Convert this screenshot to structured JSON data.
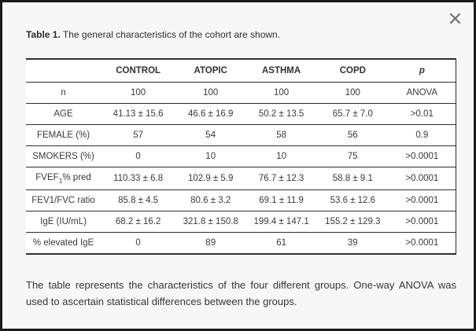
{
  "dialog": {
    "close_icon": "x"
  },
  "title": {
    "bold": "Table 1.",
    "rest": " The general characteristics of the cohort are shown."
  },
  "table": {
    "columns": [
      "",
      "CONTROL",
      "ATOPIC",
      "ASTHMA",
      "COPD",
      "p"
    ],
    "rows": [
      {
        "label": [
          {
            "t": "n"
          }
        ],
        "values": [
          "100",
          "100",
          "100",
          "100",
          "ANOVA"
        ]
      },
      {
        "label": [
          {
            "t": "AGE"
          }
        ],
        "values": [
          "41.13 ± 15.6",
          "46.6 ± 16.9",
          "50.2 ± 13.5",
          "65.7 ± 7.0",
          ">0.01"
        ]
      },
      {
        "label": [
          {
            "t": "FEMALE (%)"
          }
        ],
        "values": [
          "57",
          "54",
          "58",
          "56",
          "0.9"
        ]
      },
      {
        "label": [
          {
            "t": "SMOKERS (%)"
          }
        ],
        "values": [
          "0",
          "10",
          "10",
          "75",
          ">0.0001"
        ]
      },
      {
        "label": [
          {
            "t": "FVEF"
          },
          {
            "t": "1",
            "sub": true
          },
          {
            "t": "% pred"
          }
        ],
        "values": [
          "110.33 ± 6.8",
          "102.9 ± 5.9",
          "76.7 ± 12.3",
          "58.8 ± 9.1",
          ">0.0001"
        ]
      },
      {
        "label": [
          {
            "t": "FEV1/FVC ratio"
          }
        ],
        "values": [
          "85.8 ± 4.5",
          "80.6 ± 3.2",
          "69.1 ± 11.9",
          "53.6 ± 12.6",
          ">0.0001"
        ]
      },
      {
        "label": [
          {
            "t": "IgE (IU/mL)"
          }
        ],
        "values": [
          "68.2 ± 16.2",
          "321.8 ± 150.8",
          "199.4 ± 147.1",
          "155.2 ± 129.3",
          ">0.0001"
        ]
      },
      {
        "label": [
          {
            "t": "% elevated IgE"
          }
        ],
        "values": [
          "0",
          "89",
          "61",
          "39",
          ">0.0001"
        ]
      }
    ]
  },
  "caption": "The table represents the characteristics of the four different groups. One-way ANOVA was used to ascertain statistical differences between the groups.",
  "colors": {
    "outer_border": "#1b1b1b",
    "background": "#f7f7f7",
    "table_background": "#ffffff",
    "rule": "#2e2e2e",
    "text": "#3a3a3a",
    "close_icon": "#6f6f6f"
  }
}
